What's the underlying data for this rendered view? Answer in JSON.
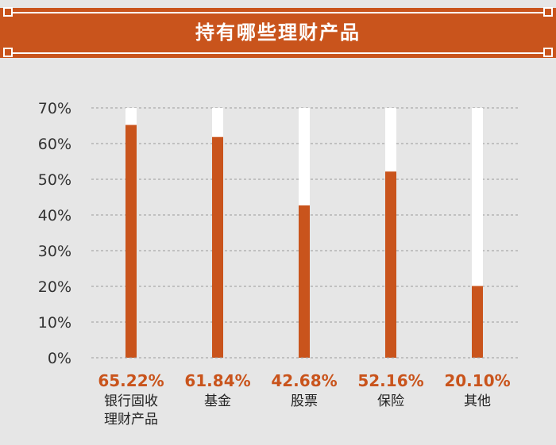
{
  "header": {
    "title": "持有哪些理财产品"
  },
  "colors": {
    "accent": "#c9541c",
    "track": "#ffffff",
    "grid": "#9a9a9a",
    "background": "#e6e6e6",
    "value_label": "#c9541c"
  },
  "chart_data": {
    "type": "bar",
    "title": "持有哪些理财产品",
    "categories": [
      [
        "银行固收",
        "理财产品"
      ],
      [
        "基金"
      ],
      [
        "股票"
      ],
      [
        "保险"
      ],
      [
        "其他"
      ]
    ],
    "values": [
      65.22,
      61.84,
      42.68,
      52.16,
      20.1
    ],
    "value_labels": [
      "65.22%",
      "61.84%",
      "42.68%",
      "52.16%",
      "20.10%"
    ],
    "ylim": [
      0,
      70
    ],
    "yticks": [
      "0%",
      "10%",
      "20%",
      "30%",
      "40%",
      "50%",
      "60%",
      "70%"
    ],
    "grid": true,
    "legend": "none"
  }
}
